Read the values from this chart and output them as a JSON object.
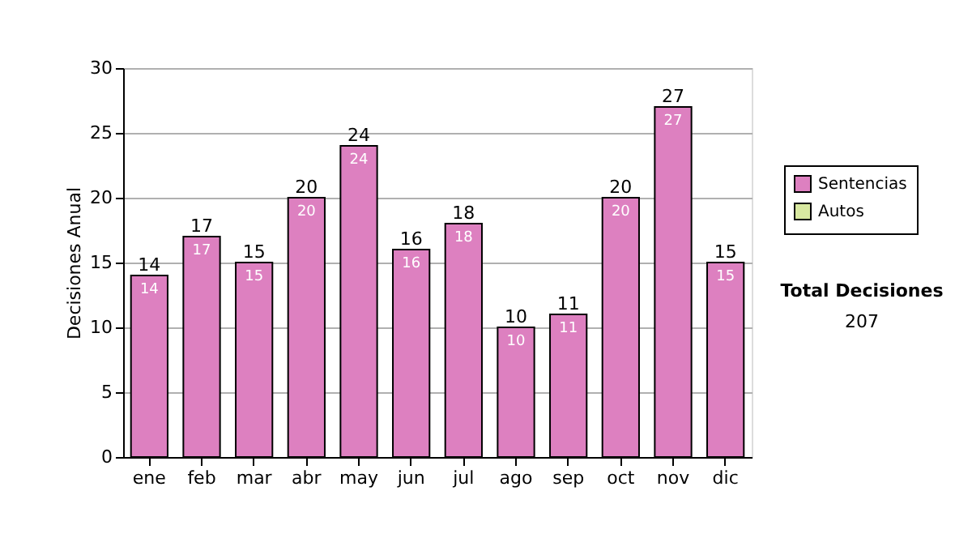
{
  "chart_data": {
    "type": "bar",
    "ylabel": "Decisiones Anual",
    "categories": [
      "ene",
      "feb",
      "mar",
      "abr",
      "may",
      "jun",
      "jul",
      "ago",
      "sep",
      "oct",
      "nov",
      "dic"
    ],
    "series": [
      {
        "name": "Sentencias",
        "color": "#dd80c0",
        "values": [
          14,
          17,
          15,
          20,
          24,
          16,
          18,
          10,
          11,
          20,
          27,
          15
        ],
        "value_labels": [
          "14",
          "17",
          "15",
          "20",
          "24",
          "16",
          "18",
          "10",
          "11",
          "20",
          "27",
          "15"
        ]
      },
      {
        "name": "Autos",
        "color": "#d8e8a0",
        "values": [
          null,
          null,
          null,
          null,
          null,
          null,
          null,
          null,
          null,
          null,
          null,
          null
        ]
      }
    ],
    "stacked": true,
    "totals": [
      "14",
      "17",
      "15",
      "20",
      "24",
      "16",
      "18",
      "10",
      "11",
      "20",
      "27",
      "15"
    ],
    "ylim": [
      0,
      30
    ],
    "yticks": [
      0,
      5,
      10,
      15,
      20,
      25,
      30
    ],
    "grid": "y",
    "legend": "right",
    "annotations": [
      "Total Decisiones",
      "207"
    ]
  }
}
